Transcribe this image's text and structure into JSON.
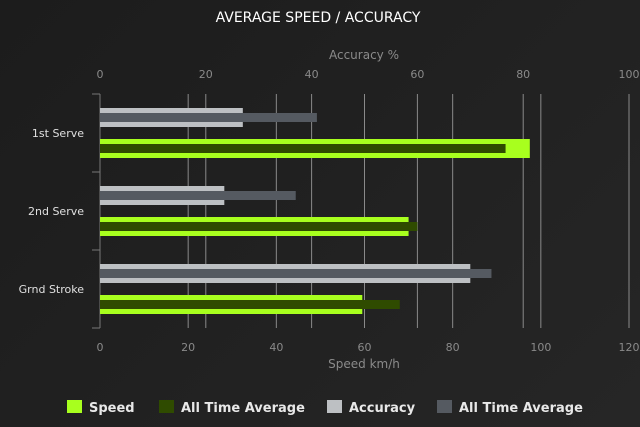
{
  "chart_data": {
    "type": "bar",
    "orientation": "horizontal",
    "title": "AVERAGE SPEED / ACCURACY",
    "categories": [
      "1st Serve",
      "2nd Serve",
      "Grnd Stroke"
    ],
    "x_axis_top": {
      "label": "Accuracy %",
      "range": [
        0,
        100
      ],
      "ticks": [
        0,
        20,
        40,
        60,
        80,
        100
      ]
    },
    "x_axis_bottom": {
      "label": "Speed km/h",
      "range": [
        0,
        120
      ],
      "ticks": [
        0,
        20,
        40,
        60,
        80,
        100,
        120
      ]
    },
    "grid": true,
    "legend_position": "bottom",
    "series": [
      {
        "name": "Speed",
        "axis": "bottom",
        "color": "#a8ff1e",
        "values": [
          97.5,
          70,
          59.5
        ]
      },
      {
        "name": "All Time Average",
        "axis": "bottom",
        "color": "#2f4b00",
        "values": [
          92,
          72,
          68
        ]
      },
      {
        "name": "Accuracy",
        "axis": "top",
        "color": "#bdc0c3",
        "values": [
          27,
          23.5,
          70
        ]
      },
      {
        "name": "All Time Average",
        "axis": "top",
        "color": "#555a61",
        "values": [
          41,
          37,
          74
        ]
      }
    ]
  }
}
